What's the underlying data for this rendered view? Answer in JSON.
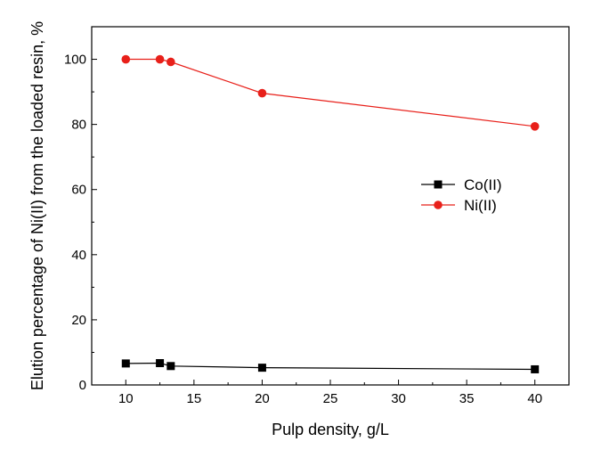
{
  "chart_data": {
    "type": "line",
    "title": "",
    "xlabel": "Pulp density, g/L",
    "ylabel": "Elution percentage of Ni(II) from the loaded resin, %",
    "xlim": [
      7.5,
      42.5
    ],
    "ylim": [
      0,
      110
    ],
    "xticks": [
      10,
      15,
      20,
      25,
      30,
      35,
      40
    ],
    "yticks": [
      0,
      20,
      40,
      60,
      80,
      100
    ],
    "x": [
      10,
      12.5,
      13.3,
      20,
      40
    ],
    "legend_position": "center-right",
    "series": [
      {
        "name": "Co(II)",
        "color": "#000000",
        "marker": "square",
        "values": [
          6.6,
          6.7,
          5.8,
          5.3,
          4.8
        ]
      },
      {
        "name": "Ni(II)",
        "color": "#e8201a",
        "marker": "circle",
        "values": [
          100,
          100,
          99.2,
          89.6,
          79.4
        ]
      }
    ]
  }
}
